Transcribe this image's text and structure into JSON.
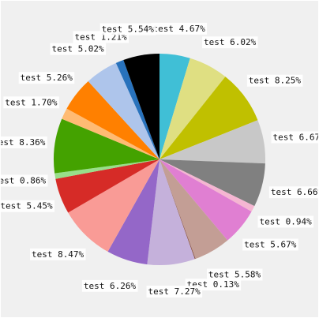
{
  "chart_data": {
    "type": "pie",
    "title": "",
    "start_angle_deg": 0,
    "direction": "clockwise",
    "legend": "none",
    "slices": [
      {
        "label": "test 4.67%",
        "value": 4.67,
        "color": "#40bfd6"
      },
      {
        "label": "test 6.02%",
        "value": 6.02,
        "color": "#dfdf82"
      },
      {
        "label": "test 8.25%",
        "value": 8.25,
        "color": "#c0c000"
      },
      {
        "label": "test 6.67%",
        "value": 6.67,
        "color": "#c8c8c8"
      },
      {
        "label": "test 6.66%",
        "value": 6.66,
        "color": "#808080"
      },
      {
        "label": "test 0.94%",
        "value": 0.94,
        "color": "#f5b6d2"
      },
      {
        "label": "test 5.67%",
        "value": 5.67,
        "color": "#e07fd2"
      },
      {
        "label": "test 5.58%",
        "value": 5.58,
        "color": "#c39e95"
      },
      {
        "label": "test 0.13%",
        "value": 0.13,
        "color": "#8b564b"
      },
      {
        "label": "test 7.27%",
        "value": 7.27,
        "color": "#c5b1db"
      },
      {
        "label": "test 6.26%",
        "value": 6.26,
        "color": "#9467c8"
      },
      {
        "label": "test 8.47%",
        "value": 8.47,
        "color": "#f99b96"
      },
      {
        "label": "test 5.45%",
        "value": 5.45,
        "color": "#d62b27"
      },
      {
        "label": "test 0.86%",
        "value": 0.86,
        "color": "#98df8a"
      },
      {
        "label": "test 8.36%",
        "value": 8.36,
        "color": "#44a200"
      },
      {
        "label": "test 1.70%",
        "value": 1.7,
        "color": "#ffbb73"
      },
      {
        "label": "test 5.26%",
        "value": 5.26,
        "color": "#ff8000"
      },
      {
        "label": "test 5.02%",
        "value": 5.02,
        "color": "#aec5eb"
      },
      {
        "label": "test 1.21%",
        "value": 1.21,
        "color": "#2872bc"
      },
      {
        "label": "test 5.54%",
        "value": 5.54,
        "color": "#000000"
      }
    ]
  }
}
